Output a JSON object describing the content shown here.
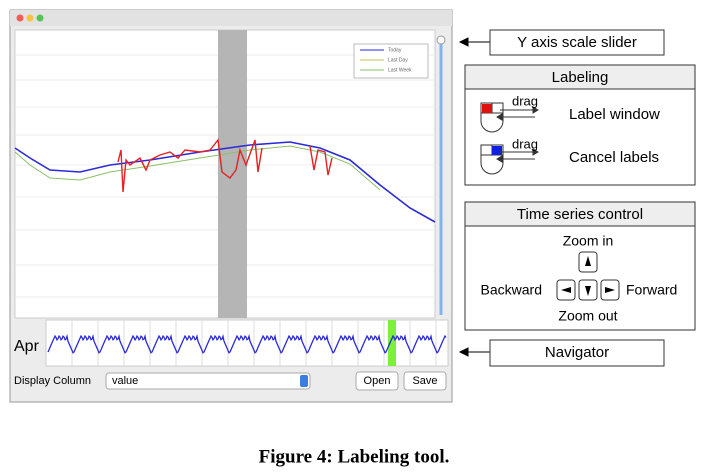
{
  "window": {
    "legend": [
      "Today",
      "Last Day",
      "Last Week"
    ],
    "navigator_label": "Apr",
    "display_column_label": "Display Column",
    "display_column_value": "value",
    "buttons": [
      "Open",
      "Save"
    ]
  },
  "callouts": {
    "y_axis_slider": "Y axis scale slider",
    "navigator": "Navigator"
  },
  "labeling": {
    "title": "Labeling",
    "rows": [
      {
        "gesture": "drag",
        "action": "Label window"
      },
      {
        "gesture": "drag",
        "action": "Cancel labels"
      }
    ]
  },
  "time_series_control": {
    "title": "Time series control",
    "zoom_in": "Zoom in",
    "zoom_out": "Zoom out",
    "backward": "Backward",
    "forward": "Forward"
  },
  "caption": "Figure 4: Labeling tool."
}
